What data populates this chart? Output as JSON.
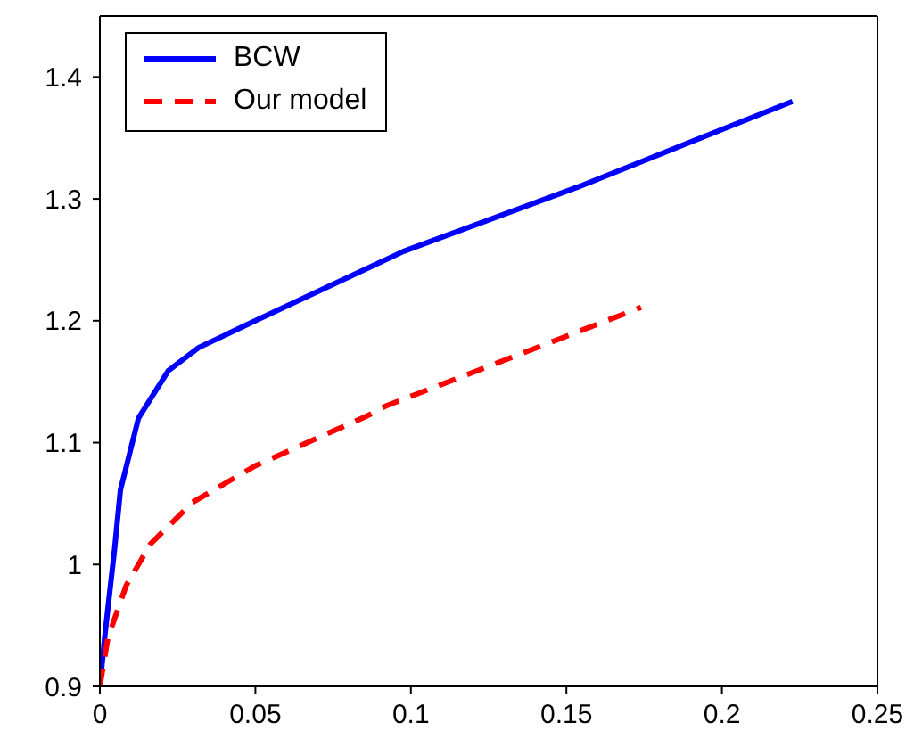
{
  "chart_data": {
    "type": "line",
    "xlim": [
      0,
      0.25
    ],
    "xticks": [
      0,
      0.05,
      0.1,
      0.15,
      0.2,
      0.25
    ],
    "ylim": [
      0.9,
      1.45
    ],
    "yticks": [
      0.9,
      1,
      1.1,
      1.2,
      1.3,
      1.4
    ],
    "legend": "top left",
    "grid": false,
    "series": [
      {
        "name": "BCW",
        "color": "#0000ff",
        "line_style": "solid",
        "x": [
          0,
          0.0017,
          0.0047,
          0.0066,
          0.0124,
          0.022,
          0.0318,
          0.05,
          0.086,
          0.0977,
          0.154,
          0.2227
        ],
        "values": [
          0.9,
          0.944,
          1.012,
          1.061,
          1.12,
          1.159,
          1.178,
          1.2,
          1.243,
          1.257,
          1.31,
          1.38
        ]
      },
      {
        "name": "Our model",
        "color": "#ff0000",
        "line_style": "dashed",
        "x": [
          0,
          0.0026,
          0.0085,
          0.0163,
          0.0298,
          0.05,
          0.086,
          0.0919,
          0.174
        ],
        "values": [
          0.9,
          0.94,
          0.983,
          1.017,
          1.051,
          1.081,
          1.122,
          1.13,
          1.211
        ]
      }
    ]
  }
}
